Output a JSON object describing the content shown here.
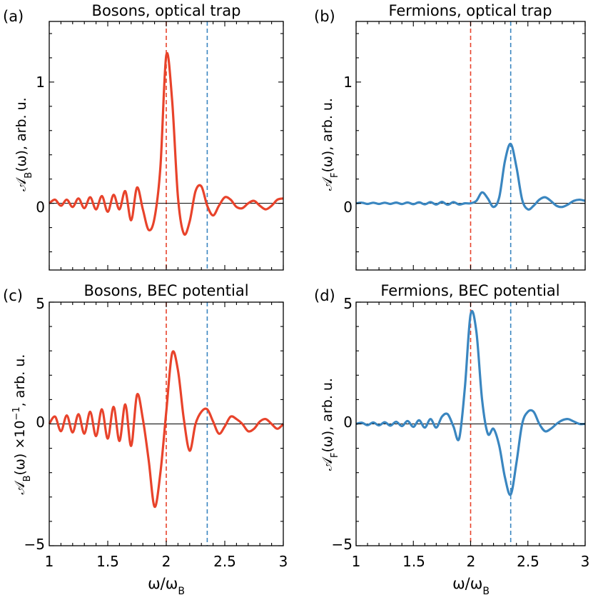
{
  "chart_data": [
    {
      "type": "line",
      "panel": "(a)",
      "title": "Bosons, optical trap",
      "ylabel": "𝒜B(ω), arb. u.",
      "xlabel": "",
      "xlim": [
        1,
        3
      ],
      "ylim": [
        -0.55,
        1.5
      ],
      "yticks": [
        0,
        1
      ],
      "xticks": [
        1,
        1.5,
        2,
        2.5,
        3
      ],
      "show_x_tick_labels": false,
      "vlines": [
        {
          "x": 2.0,
          "color": "#e8432b"
        },
        {
          "x": 2.35,
          "color": "#3a86c0"
        }
      ],
      "zero_line": true,
      "series": [
        {
          "color": "#e8432b",
          "x": [
            1.0,
            1.05,
            1.1,
            1.15,
            1.2,
            1.25,
            1.3,
            1.35,
            1.4,
            1.45,
            1.5,
            1.55,
            1.6,
            1.65,
            1.7,
            1.75,
            1.8,
            1.85,
            1.9,
            1.95,
            2.0,
            2.05,
            2.1,
            2.15,
            2.2,
            2.25,
            2.3,
            2.35,
            2.4,
            2.45,
            2.5,
            2.55,
            2.6,
            2.65,
            2.7,
            2.75,
            2.8,
            2.85,
            2.9,
            2.95,
            3.0
          ],
          "y": [
            0.0,
            0.03,
            -0.02,
            0.03,
            -0.03,
            0.04,
            -0.04,
            0.05,
            -0.05,
            0.06,
            -0.07,
            0.07,
            -0.05,
            0.1,
            -0.14,
            0.13,
            -0.05,
            -0.22,
            -0.12,
            0.3,
            1.22,
            0.85,
            0.05,
            -0.25,
            -0.15,
            0.1,
            0.14,
            -0.02,
            -0.1,
            -0.02,
            0.05,
            0.03,
            -0.03,
            -0.04,
            0.0,
            0.02,
            -0.02,
            -0.05,
            -0.02,
            0.03,
            0.04
          ]
        }
      ]
    },
    {
      "type": "line",
      "panel": "(b)",
      "title": "Fermions, optical trap",
      "ylabel": "𝒜F(ω), arb. u.",
      "xlabel": "",
      "xlim": [
        1,
        3
      ],
      "ylim": [
        -0.55,
        1.5
      ],
      "yticks": [
        0,
        1
      ],
      "xticks": [
        1,
        1.5,
        2,
        2.5,
        3
      ],
      "show_x_tick_labels": false,
      "vlines": [
        {
          "x": 2.0,
          "color": "#e8432b"
        },
        {
          "x": 2.35,
          "color": "#3a86c0"
        }
      ],
      "zero_line": true,
      "series": [
        {
          "color": "#3a86c0",
          "x": [
            1.0,
            1.05,
            1.1,
            1.15,
            1.2,
            1.25,
            1.3,
            1.35,
            1.4,
            1.45,
            1.5,
            1.55,
            1.6,
            1.65,
            1.7,
            1.75,
            1.8,
            1.85,
            1.9,
            1.95,
            2.0,
            2.05,
            2.1,
            2.15,
            2.2,
            2.25,
            2.3,
            2.35,
            2.4,
            2.45,
            2.5,
            2.55,
            2.6,
            2.65,
            2.7,
            2.75,
            2.8,
            2.85,
            2.9,
            2.95,
            3.0
          ],
          "y": [
            0.0,
            0.005,
            -0.005,
            0.005,
            -0.005,
            0.005,
            -0.005,
            0.006,
            -0.006,
            0.007,
            -0.007,
            0.008,
            -0.008,
            0.01,
            -0.01,
            0.012,
            -0.012,
            0.01,
            -0.01,
            0.0,
            0.0,
            0.02,
            0.09,
            0.04,
            -0.03,
            0.05,
            0.35,
            0.49,
            0.3,
            0.03,
            -0.05,
            -0.02,
            0.03,
            0.05,
            0.02,
            -0.02,
            -0.03,
            -0.01,
            0.02,
            0.03,
            0.02
          ]
        }
      ]
    },
    {
      "type": "line",
      "panel": "(c)",
      "title": "Bosons, BEC potential",
      "ylabel": "𝒜B(ω) ×10⁻¹, arb. u.",
      "xlabel": "ω/ωB",
      "xlim": [
        1,
        3
      ],
      "ylim": [
        -5,
        5
      ],
      "yticks": [
        -5,
        0,
        5
      ],
      "xticks": [
        1,
        1.5,
        2,
        2.5,
        3
      ],
      "xtick_labels": [
        "1",
        "1.5",
        "2",
        "2.5",
        "3"
      ],
      "ytick_labels": [
        "−5",
        "0",
        "5"
      ],
      "vlines": [
        {
          "x": 2.0,
          "color": "#e8432b"
        },
        {
          "x": 2.35,
          "color": "#3a86c0"
        }
      ],
      "zero_line": true,
      "series": [
        {
          "color": "#e8432b",
          "x": [
            1.0,
            1.05,
            1.1,
            1.15,
            1.2,
            1.25,
            1.3,
            1.35,
            1.4,
            1.45,
            1.5,
            1.55,
            1.6,
            1.65,
            1.7,
            1.75,
            1.8,
            1.85,
            1.9,
            1.95,
            2.0,
            2.05,
            2.1,
            2.15,
            2.2,
            2.25,
            2.3,
            2.35,
            2.4,
            2.45,
            2.5,
            2.55,
            2.6,
            2.65,
            2.7,
            2.75,
            2.8,
            2.85,
            2.9,
            2.95,
            3.0
          ],
          "y": [
            0.0,
            0.3,
            -0.3,
            0.35,
            -0.35,
            0.4,
            -0.4,
            0.5,
            -0.5,
            0.6,
            -0.6,
            0.7,
            -0.7,
            0.8,
            -0.9,
            1.2,
            0.2,
            -1.5,
            -3.4,
            -2.0,
            0.5,
            2.9,
            2.2,
            0.2,
            -1.1,
            0.0,
            0.5,
            0.6,
            0.1,
            -0.4,
            -0.1,
            0.3,
            0.2,
            0.0,
            -0.3,
            -0.2,
            0.1,
            0.2,
            0.0,
            -0.2,
            0.0
          ]
        }
      ]
    },
    {
      "type": "line",
      "panel": "(d)",
      "title": "Fermions, BEC potential",
      "ylabel": "𝒜F(ω), arb. u.",
      "xlabel": "ω/ωB",
      "xlim": [
        1,
        3
      ],
      "ylim": [
        -5,
        5
      ],
      "yticks": [
        -5,
        0,
        5
      ],
      "xticks": [
        1,
        1.5,
        2,
        2.5,
        3
      ],
      "xtick_labels": [
        "1",
        "1.5",
        "2",
        "2.5",
        "3"
      ],
      "ytick_labels": [
        "−5",
        "0",
        "5"
      ],
      "vlines": [
        {
          "x": 2.0,
          "color": "#e8432b"
        },
        {
          "x": 2.35,
          "color": "#3a86c0"
        }
      ],
      "zero_line": true,
      "series": [
        {
          "color": "#3a86c0",
          "x": [
            1.0,
            1.05,
            1.1,
            1.15,
            1.2,
            1.25,
            1.3,
            1.35,
            1.4,
            1.45,
            1.5,
            1.55,
            1.6,
            1.65,
            1.7,
            1.75,
            1.8,
            1.85,
            1.9,
            1.95,
            2.0,
            2.05,
            2.1,
            2.15,
            2.2,
            2.25,
            2.3,
            2.35,
            2.4,
            2.45,
            2.5,
            2.55,
            2.6,
            2.65,
            2.7,
            2.75,
            2.8,
            2.85,
            2.9,
            2.95,
            3.0
          ],
          "y": [
            0.0,
            0.05,
            -0.05,
            0.06,
            -0.06,
            0.07,
            -0.07,
            0.09,
            -0.09,
            0.12,
            -0.12,
            0.15,
            -0.15,
            0.2,
            -0.15,
            0.3,
            0.4,
            -0.1,
            -0.6,
            1.5,
            4.5,
            3.8,
            1.0,
            -0.4,
            -0.2,
            -0.9,
            -2.2,
            -2.9,
            -1.6,
            0.0,
            0.5,
            0.5,
            0.0,
            -0.3,
            -0.2,
            0.0,
            0.15,
            0.2,
            0.1,
            0.0,
            0.0
          ]
        }
      ]
    }
  ],
  "labels": {
    "a_panel": "(a)",
    "a_title": "Bosons, optical trap",
    "b_panel": "(b)",
    "b_title": "Fermions, optical trap",
    "c_panel": "(c)",
    "c_title": "Bosons, BEC potential",
    "d_panel": "(d)",
    "d_title": "Fermions, BEC potential",
    "ab_ytick_0": "0",
    "ab_ytick_1": "1",
    "cd_ytick_m5": "−5",
    "cd_ytick_0": "0",
    "cd_ytick_5": "5",
    "xtick_1": "1",
    "xtick_15": "1.5",
    "xtick_2": "2",
    "xtick_25": "2.5",
    "xtick_3": "3",
    "xlabel_main": "ω/ω",
    "xlabel_sub": "B",
    "ylabel_a_main": "𝒜",
    "ylabel_a_sub": "B",
    "ylabel_a_rest": "(ω), arb. u.",
    "ylabel_b_main": "𝒜",
    "ylabel_b_sub": "F",
    "ylabel_b_rest": "(ω), arb. u.",
    "ylabel_c_main": "𝒜",
    "ylabel_c_sub": "B",
    "ylabel_c_rest": "(ω) ×10",
    "ylabel_c_exp": "−1",
    "ylabel_c_tail": ", arb. u.",
    "ylabel_d_main": "𝒜",
    "ylabel_d_sub": "F",
    "ylabel_d_rest": "(ω), arb. u."
  },
  "colors": {
    "boson": "#e8432b",
    "fermion": "#3a86c0",
    "axis": "#000000",
    "zero": "#000000"
  }
}
